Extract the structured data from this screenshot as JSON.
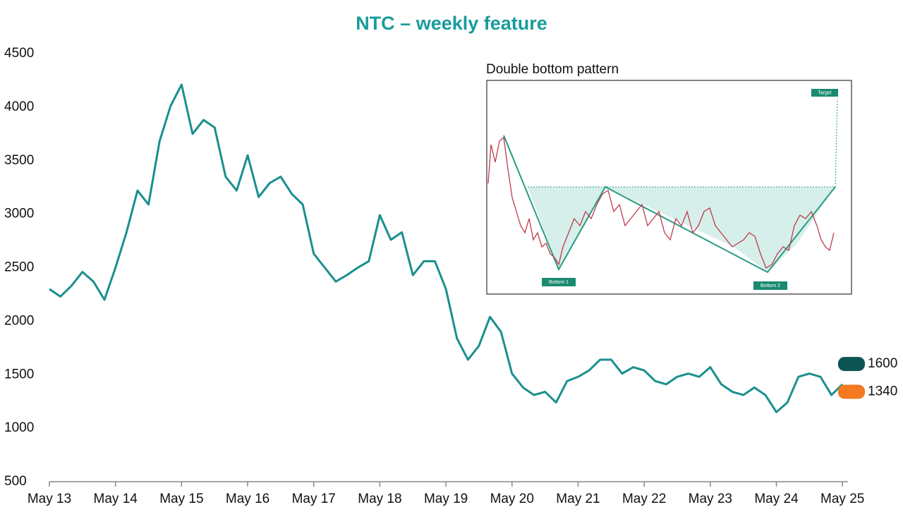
{
  "chart_data": {
    "type": "line",
    "title": "NTC – weekly feature",
    "x": [
      "2013-05",
      "2013-07",
      "2013-09",
      "2013-11",
      "2014-01",
      "2014-03",
      "2014-05",
      "2014-07",
      "2014-09",
      "2014-11",
      "2015-01",
      "2015-03",
      "2015-05",
      "2015-07",
      "2015-09",
      "2015-11",
      "2016-01",
      "2016-03",
      "2016-05",
      "2016-07",
      "2016-09",
      "2016-11",
      "2017-01",
      "2017-03",
      "2017-05",
      "2017-07",
      "2017-09",
      "2017-11",
      "2018-01",
      "2018-03",
      "2018-05",
      "2018-07",
      "2018-09",
      "2018-11",
      "2019-01",
      "2019-03",
      "2019-05",
      "2019-07",
      "2019-09",
      "2019-11",
      "2020-01",
      "2020-03",
      "2020-05",
      "2020-07",
      "2020-09",
      "2020-11",
      "2021-01",
      "2021-03",
      "2021-05",
      "2021-07",
      "2021-09",
      "2021-11",
      "2022-01",
      "2022-03",
      "2022-05",
      "2022-07",
      "2022-09",
      "2022-11",
      "2023-01",
      "2023-03",
      "2023-05",
      "2023-07",
      "2023-09",
      "2023-11",
      "2024-01",
      "2024-03",
      "2024-05",
      "2024-07",
      "2024-09",
      "2024-11",
      "2025-01",
      "2025-03",
      "2025-05"
    ],
    "series": [
      {
        "name": "NTC",
        "color": "#1a8f8f",
        "values": [
          2300,
          2230,
          2330,
          2460,
          2370,
          2200,
          2500,
          2830,
          3220,
          3090,
          3680,
          4010,
          4210,
          3750,
          3880,
          3810,
          3350,
          3220,
          3550,
          3160,
          3290,
          3350,
          3190,
          3090,
          2630,
          2500,
          2370,
          2430,
          2500,
          2560,
          2990,
          2760,
          2830,
          2430,
          2560,
          2560,
          2300,
          1840,
          1640,
          1770,
          2040,
          1900,
          1510,
          1380,
          1310,
          1340,
          1240,
          1440,
          1480,
          1540,
          1640,
          1640,
          1510,
          1570,
          1540,
          1440,
          1410,
          1480,
          1510,
          1480,
          1570,
          1410,
          1340,
          1310,
          1380,
          1310,
          1150,
          1240,
          1480,
          1510,
          1480,
          1310,
          1410
        ]
      }
    ],
    "xlim": [
      "2013-05",
      "2025-06"
    ],
    "xticks": [
      {
        "value": "2013-05",
        "label": "May 13"
      },
      {
        "value": "2014-05",
        "label": "May 14"
      },
      {
        "value": "2015-05",
        "label": "May 15"
      },
      {
        "value": "2016-05",
        "label": "May 16"
      },
      {
        "value": "2017-05",
        "label": "May 17"
      },
      {
        "value": "2018-05",
        "label": "May 18"
      },
      {
        "value": "2019-05",
        "label": "May 19"
      },
      {
        "value": "2020-05",
        "label": "May 20"
      },
      {
        "value": "2021-05",
        "label": "May 21"
      },
      {
        "value": "2022-05",
        "label": "May 22"
      },
      {
        "value": "2023-05",
        "label": "May 23"
      },
      {
        "value": "2024-05",
        "label": "May 24"
      },
      {
        "value": "2025-05",
        "label": "May 25"
      }
    ],
    "ylim": [
      500,
      4500
    ],
    "yticks": [
      500,
      1000,
      1500,
      2000,
      2500,
      3000,
      3500,
      4000,
      4500
    ],
    "markers": [
      {
        "value": 1600,
        "color": "#0d5454"
      },
      {
        "value": 1340,
        "color": "#f47920"
      }
    ],
    "inset": {
      "title": "Double bottom pattern",
      "labels": [
        "Target",
        "Bottom 1",
        "Bottom 2"
      ]
    }
  }
}
